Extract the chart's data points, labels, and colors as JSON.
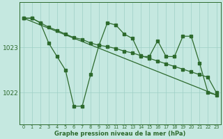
{
  "line1_x": [
    0,
    1,
    2,
    3,
    4,
    5,
    6,
    7,
    8,
    9,
    10,
    11,
    12,
    13,
    14,
    15,
    16,
    17,
    18,
    19,
    20,
    21,
    22,
    23
  ],
  "line1_y": [
    1023.65,
    1023.65,
    1023.55,
    1023.45,
    1023.38,
    1023.3,
    1023.22,
    1023.18,
    1023.1,
    1023.05,
    1023.02,
    1022.98,
    1022.92,
    1022.88,
    1022.82,
    1022.76,
    1022.7,
    1022.64,
    1022.58,
    1022.52,
    1022.46,
    1022.4,
    1022.34,
    1022.0
  ],
  "line2_x": [
    0,
    1,
    2,
    3,
    4,
    5,
    6,
    7,
    8,
    9,
    10,
    11,
    12,
    13,
    14,
    15,
    16,
    17,
    18,
    19,
    20,
    21,
    22,
    23
  ],
  "line2_y": [
    1023.65,
    1023.65,
    1023.55,
    1023.1,
    1022.8,
    1022.5,
    1021.7,
    1021.7,
    1022.4,
    1023.05,
    1023.55,
    1023.5,
    1023.3,
    1023.2,
    1022.8,
    1022.8,
    1023.15,
    1022.8,
    1022.8,
    1023.25,
    1023.25,
    1022.65,
    1022.0,
    1021.95
  ],
  "color": "#2d6a2d",
  "bg_color": "#c5e8e0",
  "grid_color": "#9ecfc5",
  "xlabel": "Graphe pression niveau de la mer (hPa)",
  "xticks": [
    0,
    1,
    2,
    3,
    4,
    5,
    6,
    7,
    8,
    9,
    10,
    11,
    12,
    13,
    14,
    15,
    16,
    17,
    18,
    19,
    20,
    21,
    22,
    23
  ],
  "yticks": [
    1022,
    1023
  ],
  "ylim": [
    1021.3,
    1024.0
  ],
  "xlim": [
    -0.5,
    23.5
  ]
}
